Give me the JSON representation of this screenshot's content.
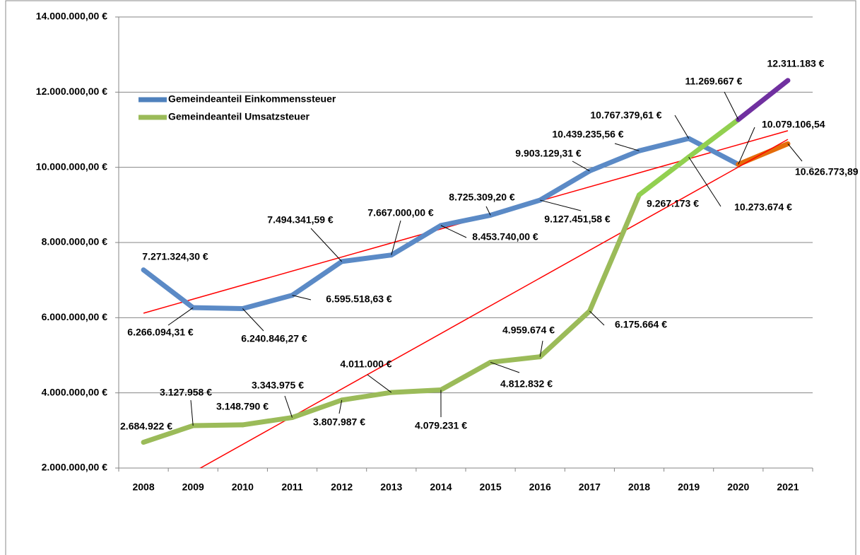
{
  "chart_data": {
    "type": "line",
    "categories": [
      "2008",
      "2009",
      "2010",
      "2011",
      "2012",
      "2013",
      "2014",
      "2015",
      "2016",
      "2017",
      "2018",
      "2019",
      "2020",
      "2021"
    ],
    "ylim": [
      2000000,
      14000000
    ],
    "yticks": [
      {
        "value": 2000000,
        "label": "2.000.000,00 €"
      },
      {
        "value": 4000000,
        "label": "4.000.000,00 €"
      },
      {
        "value": 6000000,
        "label": "6.000.000,00 €"
      },
      {
        "value": 8000000,
        "label": "8.000.000,00 €"
      },
      {
        "value": 10000000,
        "label": "10.000.000,00 €"
      },
      {
        "value": 12000000,
        "label": "12.000.000,00 €"
      },
      {
        "value": 14000000,
        "label": "14.000.000,00 €"
      }
    ],
    "grid": true,
    "legend": "upper left",
    "trendline": true,
    "trendline_color": "#ff0000",
    "series": [
      {
        "name": "Gemeindeanteil Einkommenssteuer",
        "color": "#4f81bd",
        "values": [
          7271324.3,
          6266094.31,
          6240846.27,
          6595518.63,
          7494341.59,
          7667000.0,
          8453740.0,
          8725309.2,
          9127451.58,
          9903129.31,
          10439235.56,
          10767379.61,
          10079106.54,
          10626773.89
        ],
        "value_labels": [
          "7.271.324,30 €",
          "6.266.094,31 €",
          "6.240.846,27 €",
          "6.595.518,63 €",
          "7.494.341,59 €",
          "7.667.000,00 €",
          "8.453.740,00 €",
          "8.725.309,20 €",
          "9.127.451,58 €",
          "9.903.129,31 €",
          "10.439.235,56 €",
          "10.767.379,61 €",
          "10.079.106,54",
          "10.626.773,89"
        ],
        "segment_colors": [
          "#5b8ac6",
          "#5b8ac6",
          "#5b8ac6",
          "#5b8ac6",
          "#5b8ac6",
          "#5b8ac6",
          "#5b8ac6",
          "#5b8ac6",
          "#5b8ac6",
          "#5b8ac6",
          "#5b8ac6",
          "#5b8ac6",
          "#e46c0a"
        ]
      },
      {
        "name": "Gemeindeanteil Umsatzsteuer",
        "color": "#9bbb59",
        "values": [
          2684922,
          3127958,
          3148790,
          3343975,
          3807987,
          4011000,
          4079231,
          4812832,
          4959674,
          6175664,
          9267173,
          10273674,
          11269667,
          12311183
        ],
        "value_labels": [
          "2.684.922 €",
          "3.127.958 €",
          "3.148.790 €",
          "3.343.975 €",
          "3.807.987 €",
          "4.011.000 €",
          "4.079.231 €",
          "4.812.832 €",
          "4.959.674 €",
          "6.175.664 €",
          "9.267.173 €",
          "10.273.674 €",
          "11.269.667 €",
          "12.311.183 €"
        ],
        "segment_colors": [
          "#9bbb59",
          "#9bbb59",
          "#9bbb59",
          "#9bbb59",
          "#9bbb59",
          "#9bbb59",
          "#9bbb59",
          "#9bbb59",
          "#9bbb59",
          "#9bbb59",
          "#92d050",
          "#92d050",
          "#7030a0"
        ]
      }
    ]
  }
}
